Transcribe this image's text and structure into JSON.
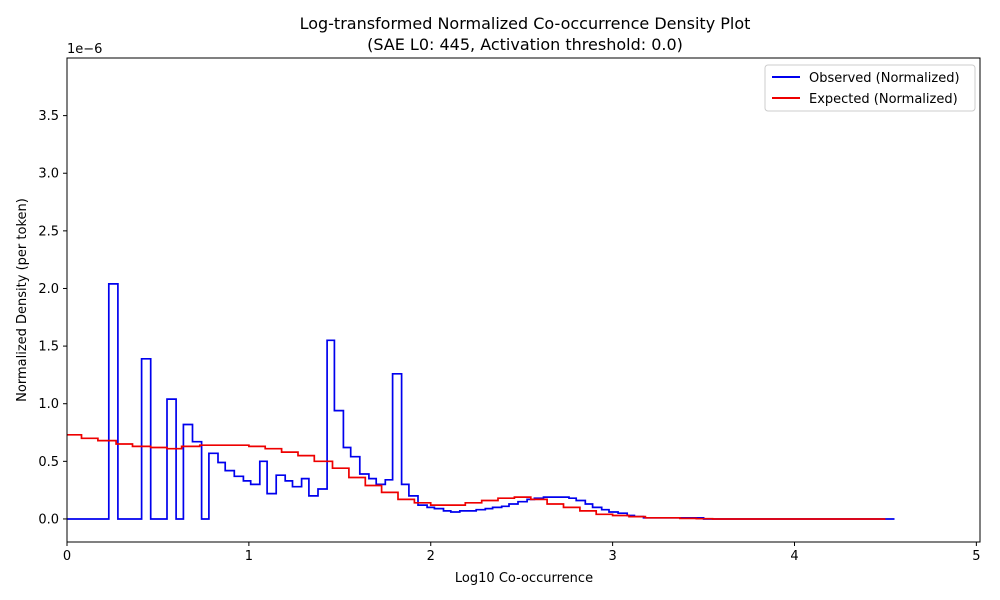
{
  "chart_data": {
    "type": "line",
    "title": "Log-transformed Normalized Co-occurrence Density Plot",
    "subtitle": "(SAE L0: 445, Activation threshold: 0.0)",
    "xlabel": "Log10 Co-occurrence",
    "ylabel": "Normalized Density (per token)",
    "y_scale_label": "1e−6",
    "xlim": [
      0,
      5.02
    ],
    "ylim": [
      -0.2,
      4.0
    ],
    "x_ticks": [
      0,
      1,
      2,
      3,
      4,
      5
    ],
    "x_tick_labels": [
      "0",
      "1",
      "2",
      "3",
      "4",
      "5"
    ],
    "y_ticks": [
      0.0,
      0.5,
      1.0,
      1.5,
      2.0,
      2.5,
      3.0,
      3.5
    ],
    "y_tick_labels": [
      "0.0",
      "0.5",
      "1.0",
      "1.5",
      "2.0",
      "2.5",
      "3.0",
      "3.5"
    ],
    "grid": false,
    "legend": "top-right",
    "step_style": "post",
    "series": [
      {
        "name": "Observed (Normalized)",
        "color": "#0000ee",
        "points": [
          [
            0.0,
            0.0
          ],
          [
            0.23,
            2.04
          ],
          [
            0.28,
            0.0
          ],
          [
            0.41,
            1.39
          ],
          [
            0.46,
            0.0
          ],
          [
            0.55,
            1.04
          ],
          [
            0.6,
            0.0
          ],
          [
            0.64,
            0.82
          ],
          [
            0.69,
            0.67
          ],
          [
            0.74,
            0.0
          ],
          [
            0.78,
            0.57
          ],
          [
            0.83,
            0.49
          ],
          [
            0.87,
            0.42
          ],
          [
            0.92,
            0.37
          ],
          [
            0.97,
            0.33
          ],
          [
            1.01,
            0.3
          ],
          [
            1.06,
            0.5
          ],
          [
            1.1,
            0.22
          ],
          [
            1.15,
            0.38
          ],
          [
            1.2,
            0.33
          ],
          [
            1.24,
            0.28
          ],
          [
            1.29,
            0.35
          ],
          [
            1.33,
            0.2
          ],
          [
            1.38,
            0.26
          ],
          [
            1.43,
            1.55
          ],
          [
            1.47,
            0.94
          ],
          [
            1.52,
            0.62
          ],
          [
            1.56,
            0.54
          ],
          [
            1.61,
            0.39
          ],
          [
            1.66,
            0.35
          ],
          [
            1.7,
            0.3
          ],
          [
            1.75,
            0.34
          ],
          [
            1.79,
            1.26
          ],
          [
            1.84,
            0.3
          ],
          [
            1.88,
            0.2
          ],
          [
            1.93,
            0.12
          ],
          [
            1.98,
            0.1
          ],
          [
            2.02,
            0.09
          ],
          [
            2.07,
            0.07
          ],
          [
            2.11,
            0.06
          ],
          [
            2.16,
            0.07
          ],
          [
            2.2,
            0.07
          ],
          [
            2.25,
            0.08
          ],
          [
            2.3,
            0.09
          ],
          [
            2.34,
            0.1
          ],
          [
            2.39,
            0.11
          ],
          [
            2.43,
            0.13
          ],
          [
            2.48,
            0.15
          ],
          [
            2.53,
            0.17
          ],
          [
            2.57,
            0.18
          ],
          [
            2.62,
            0.19
          ],
          [
            2.66,
            0.19
          ],
          [
            2.71,
            0.19
          ],
          [
            2.76,
            0.18
          ],
          [
            2.8,
            0.16
          ],
          [
            2.85,
            0.13
          ],
          [
            2.89,
            0.1
          ],
          [
            2.94,
            0.08
          ],
          [
            2.98,
            0.06
          ],
          [
            3.03,
            0.05
          ],
          [
            3.08,
            0.03
          ],
          [
            3.12,
            0.02
          ],
          [
            3.17,
            0.01
          ],
          [
            3.22,
            0.01
          ],
          [
            3.26,
            0.01
          ],
          [
            3.31,
            0.01
          ],
          [
            3.36,
            0.01
          ],
          [
            3.4,
            0.01
          ],
          [
            3.45,
            0.01
          ],
          [
            3.5,
            0.0
          ],
          [
            4.55,
            0.0
          ]
        ]
      },
      {
        "name": "Expected (Normalized)",
        "color": "#ee0000",
        "points": [
          [
            0.0,
            0.73
          ],
          [
            0.08,
            0.7
          ],
          [
            0.17,
            0.68
          ],
          [
            0.27,
            0.65
          ],
          [
            0.36,
            0.63
          ],
          [
            0.46,
            0.62
          ],
          [
            0.55,
            0.61
          ],
          [
            0.63,
            0.63
          ],
          [
            0.73,
            0.64
          ],
          [
            0.91,
            0.64
          ],
          [
            1.0,
            0.63
          ],
          [
            1.09,
            0.61
          ],
          [
            1.18,
            0.58
          ],
          [
            1.27,
            0.55
          ],
          [
            1.36,
            0.5
          ],
          [
            1.46,
            0.44
          ],
          [
            1.55,
            0.36
          ],
          [
            1.64,
            0.29
          ],
          [
            1.73,
            0.23
          ],
          [
            1.82,
            0.17
          ],
          [
            1.91,
            0.14
          ],
          [
            2.0,
            0.12
          ],
          [
            2.09,
            0.12
          ],
          [
            2.19,
            0.14
          ],
          [
            2.28,
            0.16
          ],
          [
            2.37,
            0.18
          ],
          [
            2.46,
            0.19
          ],
          [
            2.55,
            0.17
          ],
          [
            2.64,
            0.13
          ],
          [
            2.73,
            0.1
          ],
          [
            2.82,
            0.07
          ],
          [
            2.91,
            0.04
          ],
          [
            3.0,
            0.03
          ],
          [
            3.09,
            0.02
          ],
          [
            3.18,
            0.01
          ],
          [
            3.28,
            0.01
          ],
          [
            3.37,
            0.005
          ],
          [
            3.46,
            0.002
          ],
          [
            3.55,
            0.0
          ],
          [
            4.5,
            0.0
          ]
        ]
      }
    ]
  }
}
